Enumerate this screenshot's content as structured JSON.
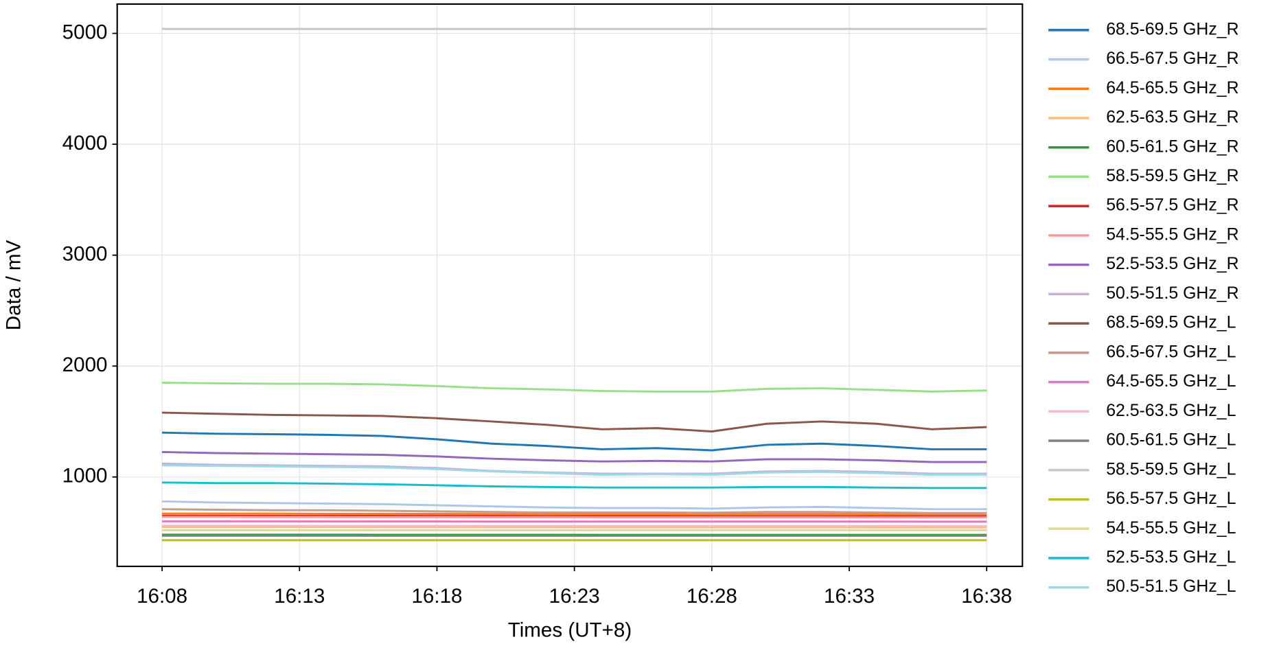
{
  "chart_data": {
    "type": "line",
    "xlabel": "Times (UT+8)",
    "ylabel": "Data / mV",
    "x": [
      "16:08",
      "16:10",
      "16:12",
      "16:14",
      "16:16",
      "16:18",
      "16:20",
      "16:22",
      "16:24",
      "16:26",
      "16:28",
      "16:30",
      "16:32",
      "16:34",
      "16:36",
      "16:38"
    ],
    "xlim": [
      "16:06:22",
      "16:39:18"
    ],
    "xticks": [
      "16:08",
      "16:13",
      "16:18",
      "16:23",
      "16:28",
      "16:33",
      "16:38"
    ],
    "ylim": [
      194,
      5264
    ],
    "yticks": [
      1000,
      2000,
      3000,
      4000,
      5000
    ],
    "grid": true,
    "legend": "outside right",
    "series": [
      {
        "name": "68.5-69.5 GHz_R",
        "color": "#1f77b4",
        "values": [
          1400,
          1390,
          1385,
          1380,
          1370,
          1340,
          1300,
          1280,
          1250,
          1260,
          1240,
          1290,
          1300,
          1280,
          1250,
          1250
        ]
      },
      {
        "name": "66.5-67.5 GHz_R",
        "color": "#aec7e8",
        "values": [
          780,
          770,
          765,
          760,
          755,
          745,
          735,
          725,
          720,
          720,
          715,
          725,
          730,
          720,
          710,
          710
        ]
      },
      {
        "name": "64.5-65.5 GHz_R",
        "color": "#ff7f0e",
        "values": [
          670,
          670,
          670,
          668,
          668,
          667,
          666,
          666,
          665,
          665,
          665,
          666,
          666,
          665,
          664,
          664
        ]
      },
      {
        "name": "62.5-63.5 GHz_R",
        "color": "#ffbb78",
        "values": [
          550,
          550,
          549,
          549,
          548,
          548,
          547,
          547,
          546,
          546,
          546,
          546,
          546,
          545,
          545,
          545
        ]
      },
      {
        "name": "60.5-61.5 GHz_R",
        "color": "#2ca02c",
        "values": [
          480,
          480,
          480,
          480,
          479,
          479,
          479,
          479,
          478,
          478,
          478,
          478,
          478,
          478,
          478,
          478
        ]
      },
      {
        "name": "58.5-59.5 GHz_R",
        "color": "#98df8a",
        "values": [
          1850,
          1845,
          1840,
          1840,
          1835,
          1820,
          1800,
          1790,
          1775,
          1770,
          1770,
          1795,
          1800,
          1785,
          1770,
          1780
        ]
      },
      {
        "name": "56.5-57.5 GHz_R",
        "color": "#d62728",
        "values": [
          650,
          650,
          650,
          649,
          649,
          648,
          648,
          647,
          647,
          647,
          646,
          646,
          646,
          646,
          645,
          645
        ]
      },
      {
        "name": "54.5-55.5 GHz_R",
        "color": "#ff9896",
        "values": [
          640,
          640,
          639,
          639,
          638,
          638,
          637,
          637,
          636,
          636,
          636,
          636,
          636,
          635,
          635,
          635
        ]
      },
      {
        "name": "52.5-53.5 GHz_R",
        "color": "#9467bd",
        "values": [
          1225,
          1215,
          1210,
          1205,
          1200,
          1185,
          1165,
          1150,
          1140,
          1145,
          1140,
          1160,
          1160,
          1150,
          1135,
          1135
        ]
      },
      {
        "name": "50.5-51.5 GHz_R",
        "color": "#c5b0d5",
        "values": [
          1120,
          1110,
          1105,
          1100,
          1095,
          1080,
          1055,
          1040,
          1030,
          1030,
          1030,
          1050,
          1055,
          1045,
          1030,
          1030
        ]
      },
      {
        "name": "68.5-69.5 GHz_L",
        "color": "#8c564b",
        "values": [
          1580,
          1570,
          1560,
          1555,
          1550,
          1530,
          1500,
          1470,
          1430,
          1440,
          1410,
          1480,
          1500,
          1480,
          1430,
          1450
        ]
      },
      {
        "name": "66.5-67.5 GHz_L",
        "color": "#c49c94",
        "values": [
          710,
          705,
          700,
          700,
          695,
          690,
          685,
          680,
          680,
          680,
          678,
          685,
          685,
          680,
          675,
          675
        ]
      },
      {
        "name": "64.5-65.5 GHz_L",
        "color": "#e377c2",
        "values": [
          600,
          600,
          600,
          599,
          599,
          599,
          598,
          598,
          598,
          598,
          598,
          598,
          598,
          598,
          597,
          597
        ]
      },
      {
        "name": "62.5-63.5 GHz_L",
        "color": "#f7b6d2",
        "values": [
          560,
          560,
          560,
          559,
          559,
          559,
          558,
          558,
          558,
          558,
          558,
          558,
          558,
          558,
          557,
          557
        ]
      },
      {
        "name": "60.5-61.5 GHz_L",
        "color": "#7f7f7f",
        "values": [
          470,
          470,
          470,
          470,
          470,
          470,
          470,
          470,
          470,
          470,
          470,
          470,
          470,
          470,
          470,
          470
        ]
      },
      {
        "name": "58.5-59.5 GHz_L",
        "color": "#c7c7c7",
        "values": [
          5040,
          5040,
          5040,
          5040,
          5040,
          5040,
          5040,
          5040,
          5040,
          5040,
          5040,
          5040,
          5040,
          5040,
          5040,
          5040
        ]
      },
      {
        "name": "56.5-57.5 GHz_L",
        "color": "#bcbd22",
        "values": [
          430,
          430,
          430,
          430,
          430,
          430,
          430,
          430,
          430,
          430,
          430,
          430,
          430,
          430,
          430,
          430
        ]
      },
      {
        "name": "54.5-55.5 GHz_L",
        "color": "#dbdb8d",
        "values": [
          520,
          520,
          520,
          520,
          520,
          520,
          520,
          520,
          520,
          520,
          520,
          520,
          520,
          520,
          520,
          520
        ]
      },
      {
        "name": "52.5-53.5 GHz_L",
        "color": "#17becf",
        "values": [
          950,
          945,
          945,
          940,
          935,
          925,
          915,
          910,
          905,
          905,
          905,
          910,
          910,
          905,
          900,
          900
        ]
      },
      {
        "name": "50.5-51.5 GHz_L",
        "color": "#9edae5",
        "values": [
          1105,
          1100,
          1095,
          1090,
          1085,
          1070,
          1050,
          1035,
          1020,
          1025,
          1020,
          1040,
          1045,
          1035,
          1020,
          1020
        ]
      }
    ]
  }
}
